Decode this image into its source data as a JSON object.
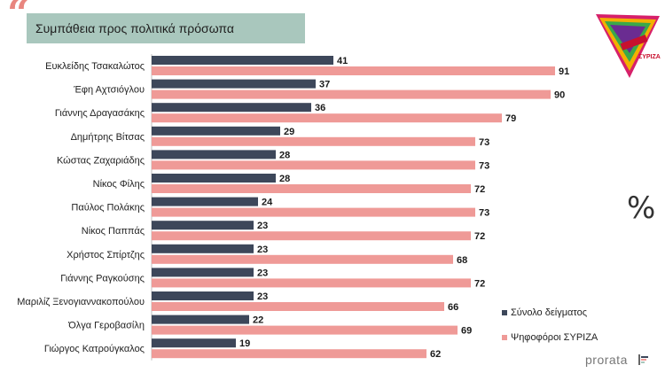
{
  "title": "Συμπάθεια προς πολιτικά πρόσωπα",
  "unit_symbol": "%",
  "brand": "prorata",
  "logo_text": "ΣΥΡΙΖΑ",
  "colors": {
    "series1": "#3d475a",
    "series2": "#ef9a97",
    "title_bg": "#a9c7bd",
    "accent": "#e8867f"
  },
  "chart_data": {
    "type": "bar",
    "orientation": "horizontal",
    "title": "Συμπάθεια προς πολιτικά πρόσωπα",
    "xlabel": "",
    "ylabel": "",
    "xlim": [
      0,
      100
    ],
    "categories": [
      "Ευκλείδης Τσακαλώτος",
      "Έφη Αχτσιόγλου",
      "Γιάννης Δραγασάκης",
      "Δημήτρης Βίτσας",
      "Κώστας Ζαχαριάδης",
      "Νίκος Φίλης",
      "Παύλος Πολάκης",
      "Νίκος Παππάς",
      "Χρήστος Σπίρτζης",
      "Γιάννης Ραγκούσης",
      "Μαριλίζ Ξενογιαννακοπούλου",
      "Όλγα Γεροβασίλη",
      "Γιώργος Κατρούγκαλος"
    ],
    "series": [
      {
        "name": "Σύνολο δείγματος",
        "values": [
          41,
          37,
          36,
          29,
          28,
          28,
          24,
          23,
          23,
          23,
          23,
          22,
          19
        ]
      },
      {
        "name": "Ψηφοφόροι ΣΥΡΙΖΑ",
        "values": [
          91,
          90,
          79,
          73,
          73,
          72,
          73,
          72,
          68,
          72,
          66,
          69,
          62
        ]
      }
    ],
    "legend_position": "bottom-right"
  }
}
